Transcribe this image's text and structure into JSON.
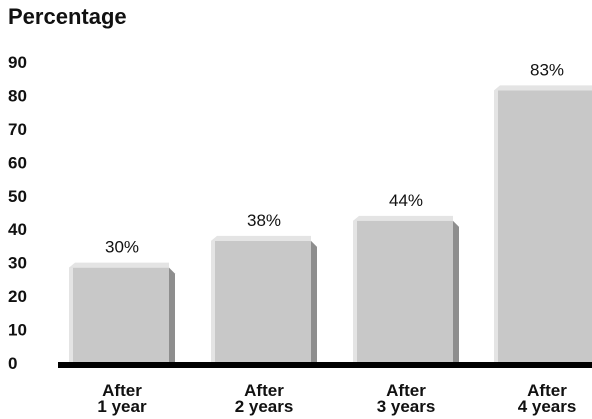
{
  "chart_data": {
    "type": "bar",
    "title": "Percentage",
    "xlabel": "",
    "ylabel": "",
    "ylim": [
      0,
      90
    ],
    "yticks": [
      0,
      10,
      20,
      30,
      40,
      50,
      60,
      70,
      80,
      90
    ],
    "categories": [
      [
        "After",
        "1 year"
      ],
      [
        "After",
        "2 years"
      ],
      [
        "After",
        "3 years"
      ],
      [
        "After",
        "4 years"
      ]
    ],
    "values": [
      30,
      38,
      44,
      83
    ],
    "data_labels": [
      "30%",
      "38%",
      "44%",
      "83%"
    ],
    "grid": false,
    "legend": "none",
    "colors": {
      "bar_face": "#c8c8c8",
      "bar_top": "#e4e4e4",
      "bar_side": "#8e8e8e",
      "bar_shadow": "#a9a9a9",
      "baseline": "#000000",
      "text": "#111111"
    }
  }
}
